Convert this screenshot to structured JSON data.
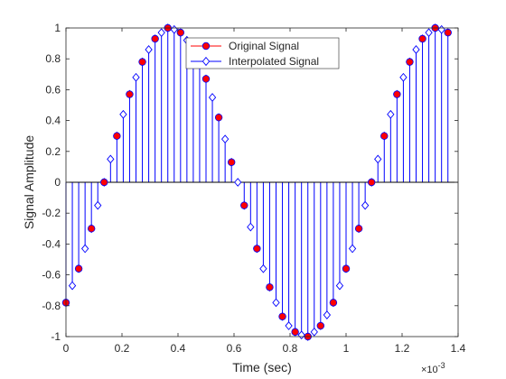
{
  "chart_data": {
    "type": "stem",
    "xlabel": "Time (sec)",
    "ylabel": "Signal Amplitude",
    "x_exponent_label": "×10",
    "x_exponent_power": "-3",
    "xlim": [
      0,
      1.4
    ],
    "ylim": [
      -1,
      1
    ],
    "x_ticks": [
      {
        "value": 0,
        "label": "0"
      },
      {
        "value": 0.2,
        "label": "0.2"
      },
      {
        "value": 0.4,
        "label": "0.4"
      },
      {
        "value": 0.6,
        "label": "0.6"
      },
      {
        "value": 0.8,
        "label": "0.8"
      },
      {
        "value": 1.0,
        "label": "1"
      },
      {
        "value": 1.2,
        "label": "1.2"
      },
      {
        "value": 1.4,
        "label": "1.4"
      }
    ],
    "y_ticks": [
      {
        "value": -1,
        "label": "-1"
      },
      {
        "value": -0.8,
        "label": "-0.8"
      },
      {
        "value": -0.6,
        "label": "-0.6"
      },
      {
        "value": -0.4,
        "label": "-0.4"
      },
      {
        "value": -0.2,
        "label": "-0.2"
      },
      {
        "value": 0,
        "label": "0"
      },
      {
        "value": 0.2,
        "label": "0.2"
      },
      {
        "value": 0.4,
        "label": "0.4"
      },
      {
        "value": 0.6,
        "label": "0.6"
      },
      {
        "value": 0.8,
        "label": "0.8"
      },
      {
        "value": 1,
        "label": "1"
      }
    ],
    "grid": false,
    "legend_position": "top-center",
    "series": [
      {
        "name": "Original Signal",
        "marker": "filled-circle",
        "color": "#ff0000",
        "edge_color": "#0000ff",
        "x": [
          0,
          0.04545,
          0.09091,
          0.13636,
          0.18182,
          0.22727,
          0.27273,
          0.31818,
          0.36364,
          0.40909,
          0.45455,
          0.5,
          0.54545,
          0.59091,
          0.63636,
          0.68182,
          0.72727,
          0.77273,
          0.81818,
          0.86364,
          0.90909,
          0.95455,
          1.0,
          1.04545,
          1.09091,
          1.13636,
          1.18182,
          1.22727,
          1.27273,
          1.31818,
          1.36364
        ],
        "y": [
          -0.78,
          -0.56,
          -0.3,
          0.0,
          0.3,
          0.57,
          0.78,
          0.93,
          1.0,
          0.97,
          0.86,
          0.67,
          0.42,
          0.13,
          -0.15,
          -0.43,
          -0.68,
          -0.87,
          -0.97,
          -1.0,
          -0.93,
          -0.78,
          -0.56,
          -0.3,
          0.0,
          0.3,
          0.57,
          0.78,
          0.93,
          1.0,
          0.97
        ]
      },
      {
        "name": "Interpolated Signal",
        "marker": "open-diamond",
        "color": "#0000ff",
        "x": [
          0,
          0.02273,
          0.04545,
          0.06818,
          0.09091,
          0.11364,
          0.13636,
          0.15909,
          0.18182,
          0.20455,
          0.22727,
          0.25,
          0.27273,
          0.29545,
          0.31818,
          0.34091,
          0.36364,
          0.38636,
          0.40909,
          0.43182,
          0.45455,
          0.47727,
          0.5,
          0.52273,
          0.54545,
          0.56818,
          0.59091,
          0.61364,
          0.63636,
          0.65909,
          0.68182,
          0.70455,
          0.72727,
          0.75,
          0.77273,
          0.79545,
          0.81818,
          0.84091,
          0.86364,
          0.88636,
          0.90909,
          0.93182,
          0.95455,
          0.97727,
          1.0,
          1.02273,
          1.04545,
          1.06818,
          1.09091,
          1.11364,
          1.13636,
          1.15909,
          1.18182,
          1.20455,
          1.22727,
          1.25,
          1.27273,
          1.29545,
          1.31818,
          1.34091,
          1.36364
        ],
        "y": [
          -0.78,
          -0.67,
          -0.56,
          -0.43,
          -0.3,
          -0.15,
          0.0,
          0.15,
          0.3,
          0.44,
          0.57,
          0.68,
          0.78,
          0.86,
          0.93,
          0.97,
          1.0,
          0.99,
          0.97,
          0.92,
          0.86,
          0.77,
          0.67,
          0.55,
          0.42,
          0.28,
          0.13,
          0.0,
          -0.15,
          -0.29,
          -0.43,
          -0.56,
          -0.68,
          -0.78,
          -0.87,
          -0.93,
          -0.97,
          -0.99,
          -1.0,
          -0.97,
          -0.93,
          -0.86,
          -0.78,
          -0.67,
          -0.56,
          -0.43,
          -0.3,
          -0.15,
          0.0,
          0.15,
          0.3,
          0.44,
          0.57,
          0.68,
          0.78,
          0.86,
          0.93,
          0.97,
          1.0,
          0.99,
          0.97
        ]
      }
    ]
  }
}
